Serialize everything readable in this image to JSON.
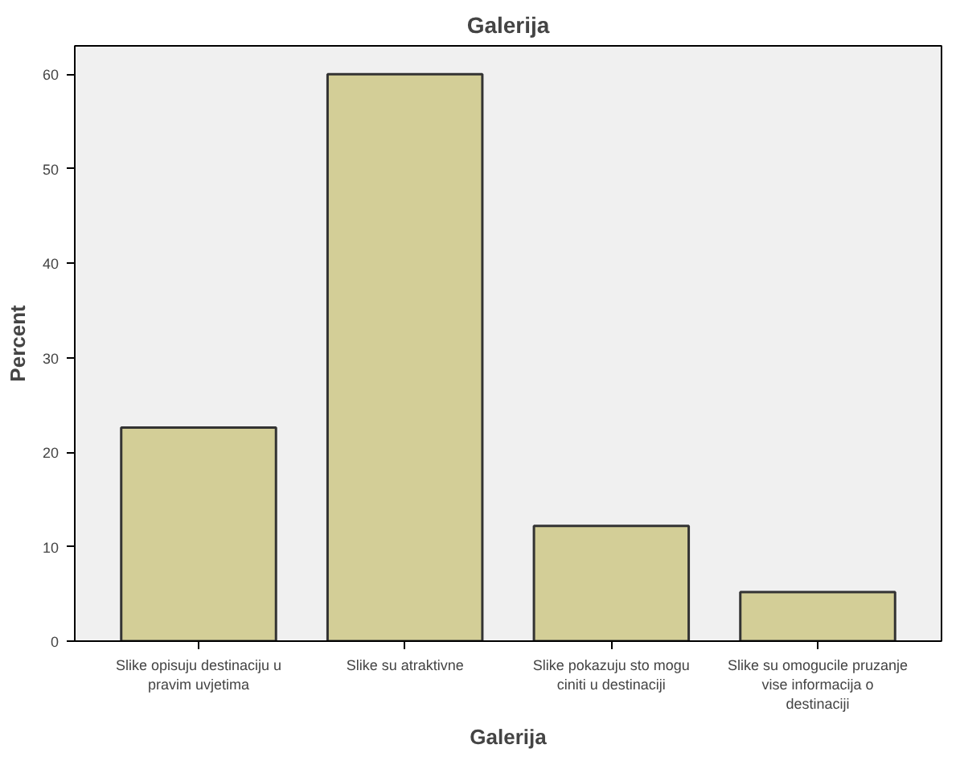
{
  "chart_data": {
    "type": "bar",
    "title": "Galerija",
    "xlabel": "Galerija",
    "ylabel": "Percent",
    "categories": [
      "Slike opisuju destinaciju u pravim uvjetima",
      "Slike su atraktivne",
      "Slike pokazuju sto mogu ciniti u destinaciji",
      "Slike su omogucile pruzanje vise informacija o destinaciji"
    ],
    "values": [
      22.6,
      60.0,
      12.2,
      5.2
    ],
    "color": "#d3ce97",
    "ylim": [
      0,
      63
    ],
    "yticks": [
      0,
      10,
      20,
      30,
      40,
      50,
      60
    ],
    "grid": false
  }
}
